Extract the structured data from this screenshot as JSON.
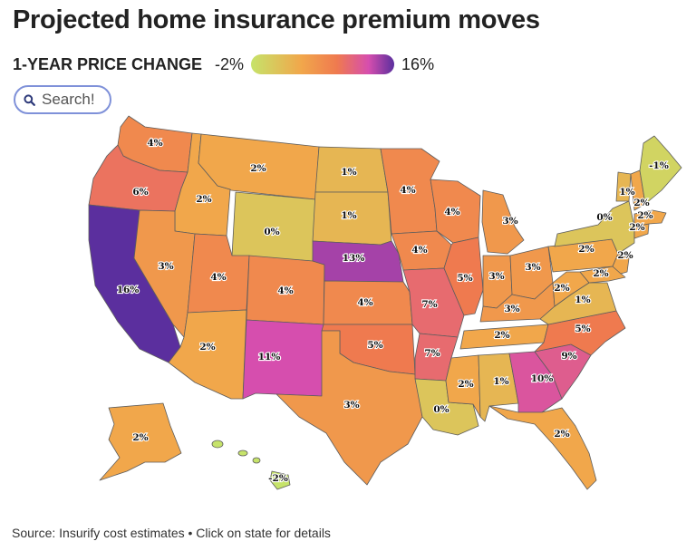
{
  "title": "Projected home insurance premium moves",
  "legend": {
    "label": "1-YEAR PRICE CHANGE",
    "min": "-2%",
    "max": "16%"
  },
  "search": {
    "placeholder": "Search!"
  },
  "source": "Source: Insurify cost estimates • Click on state for details",
  "colors": {
    "low": "#c6e36a",
    "mid": "#f1a74b",
    "high": "#d64eae",
    "max": "#5b2f9e",
    "search_border": "#7f91d9"
  },
  "states": [
    {
      "id": "WA",
      "label": "4%",
      "value": 4
    },
    {
      "id": "OR",
      "label": "6%",
      "value": 6
    },
    {
      "id": "CA",
      "label": "16%",
      "value": 16
    },
    {
      "id": "ID",
      "label": "2%",
      "value": 2
    },
    {
      "id": "NV",
      "label": "3%",
      "value": 3
    },
    {
      "id": "MT",
      "label": "2%",
      "value": 2
    },
    {
      "id": "WY",
      "label": "0%",
      "value": 0
    },
    {
      "id": "UT",
      "label": "4%",
      "value": 4
    },
    {
      "id": "AZ",
      "label": "2%",
      "value": 2
    },
    {
      "id": "CO",
      "label": "4%",
      "value": 4
    },
    {
      "id": "NM",
      "label": "11%",
      "value": 11
    },
    {
      "id": "ND",
      "label": "1%",
      "value": 1
    },
    {
      "id": "SD",
      "label": "1%",
      "value": 1
    },
    {
      "id": "NE",
      "label": "13%",
      "value": 13
    },
    {
      "id": "KS",
      "label": "4%",
      "value": 4
    },
    {
      "id": "OK",
      "label": "5%",
      "value": 5
    },
    {
      "id": "TX",
      "label": "3%",
      "value": 3
    },
    {
      "id": "MN",
      "label": "4%",
      "value": 4
    },
    {
      "id": "IA",
      "label": "4%",
      "value": 4
    },
    {
      "id": "MO",
      "label": "7%",
      "value": 7
    },
    {
      "id": "AR",
      "label": "7%",
      "value": 7
    },
    {
      "id": "LA",
      "label": "0%",
      "value": 0
    },
    {
      "id": "WI",
      "label": "4%",
      "value": 4
    },
    {
      "id": "IL",
      "label": "5%",
      "value": 5
    },
    {
      "id": "MI",
      "label": "3%",
      "value": 3
    },
    {
      "id": "IN",
      "label": "3%",
      "value": 3
    },
    {
      "id": "OH",
      "label": "3%",
      "value": 3
    },
    {
      "id": "KY",
      "label": "3%",
      "value": 3
    },
    {
      "id": "TN",
      "label": "2%",
      "value": 2
    },
    {
      "id": "MS",
      "label": "2%",
      "value": 2
    },
    {
      "id": "AL",
      "label": "1%",
      "value": 1
    },
    {
      "id": "GA",
      "label": "10%",
      "value": 10
    },
    {
      "id": "FL",
      "label": "2%",
      "value": 2
    },
    {
      "id": "SC",
      "label": "9%",
      "value": 9
    },
    {
      "id": "NC",
      "label": "5%",
      "value": 5
    },
    {
      "id": "VA",
      "label": "1%",
      "value": 1
    },
    {
      "id": "WV",
      "label": "2%",
      "value": 2
    },
    {
      "id": "PA",
      "label": "2%",
      "value": 2
    },
    {
      "id": "NY",
      "label": "0%",
      "value": 0
    },
    {
      "id": "MD",
      "label": "2%",
      "value": 2
    },
    {
      "id": "NJ",
      "label": "2%",
      "value": 2
    },
    {
      "id": "CT",
      "label": "2%",
      "value": 2
    },
    {
      "id": "MA",
      "label": "2%",
      "value": 2
    },
    {
      "id": "VT",
      "label": "1%",
      "value": 1
    },
    {
      "id": "NH",
      "label": "2%",
      "value": 2
    },
    {
      "id": "ME",
      "label": "-1%",
      "value": -1
    },
    {
      "id": "AK",
      "label": "2%",
      "value": 2
    },
    {
      "id": "HI",
      "label": "-2%",
      "value": -2
    }
  ]
}
